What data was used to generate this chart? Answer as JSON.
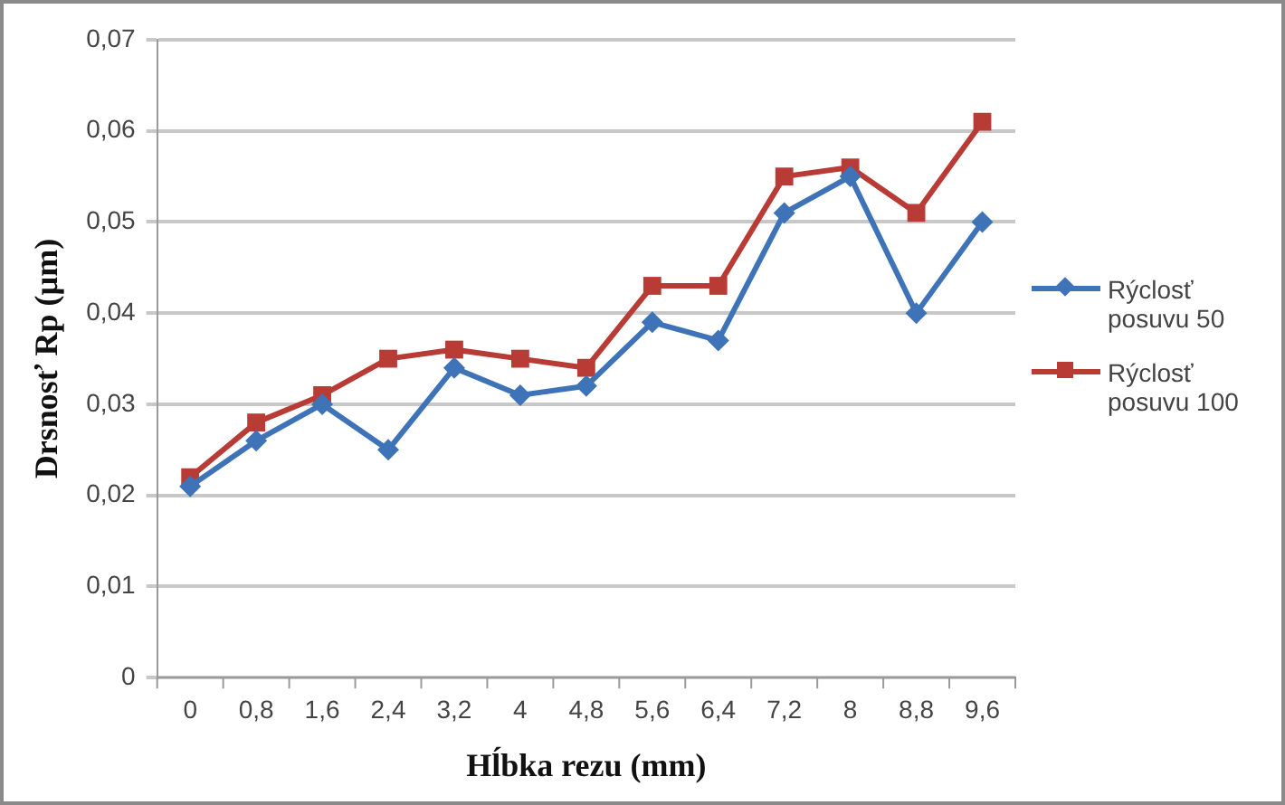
{
  "chart_data": {
    "type": "line",
    "xlabel": "Hĺbka rezu (mm)",
    "ylabel": "Drsnosť Rp (µm)",
    "categories": [
      "0",
      "0,8",
      "1,6",
      "2,4",
      "3,2",
      "4",
      "4,8",
      "5,6",
      "6,4",
      "7,2",
      "8",
      "8,8",
      "9,6"
    ],
    "series": [
      {
        "name": "Rýclosť posuvu 50",
        "color": "#3f73b8",
        "marker": "diamond",
        "values": [
          0.021,
          0.026,
          0.03,
          0.025,
          0.034,
          0.031,
          0.032,
          0.039,
          0.037,
          0.051,
          0.055,
          0.04,
          0.05
        ]
      },
      {
        "name": "Rýclosť posuvu 100",
        "color": "#b83b36",
        "marker": "square",
        "values": [
          0.022,
          0.028,
          0.031,
          0.035,
          0.036,
          0.035,
          0.034,
          0.043,
          0.043,
          0.055,
          0.056,
          0.051,
          0.061
        ]
      }
    ],
    "ylim": [
      0,
      0.07
    ],
    "yticks": [
      {
        "value": 0,
        "label": "0"
      },
      {
        "value": 0.01,
        "label": "0,01"
      },
      {
        "value": 0.02,
        "label": "0,02"
      },
      {
        "value": 0.03,
        "label": "0,03"
      },
      {
        "value": 0.04,
        "label": "0,04"
      },
      {
        "value": 0.05,
        "label": "0,05"
      },
      {
        "value": 0.06,
        "label": "0,06"
      },
      {
        "value": 0.07,
        "label": "0,07"
      }
    ],
    "grid": "y",
    "legend": "right",
    "line_style": "solid"
  }
}
